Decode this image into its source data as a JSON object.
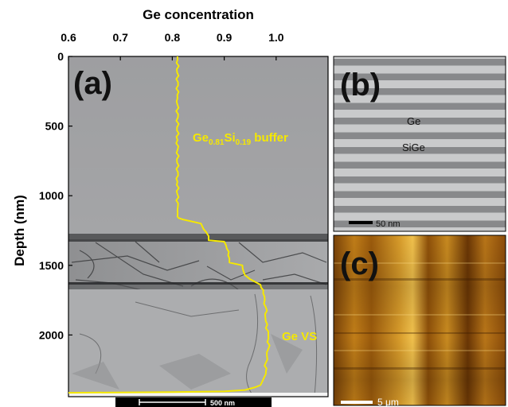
{
  "figure": {
    "top_axis_title": "Ge concentration",
    "left_axis_title": "Depth (nm)",
    "x_ticks": [
      "0.6",
      "0.7",
      "0.8",
      "0.9",
      "1.0"
    ],
    "y_ticks": [
      "0",
      "500",
      "1000",
      "1500",
      "2000"
    ]
  },
  "panel_a": {
    "letter": "(a)",
    "buffer_label": {
      "base1": "Ge",
      "sub1": "0.81",
      "base2": "Si",
      "sub2": "0.19",
      "rest": " buffer"
    },
    "vs_label": "Ge VS",
    "scalebar_label": "500 nm"
  },
  "panel_b": {
    "letter": "(b)",
    "layer_label_1": "Ge",
    "layer_label_2": "SiGe",
    "scalebar_label": "50 nm"
  },
  "panel_c": {
    "letter": "(c)",
    "scalebar_label": "5 μm"
  },
  "colors": {
    "profile": "#f5e800",
    "afm_dark": "#5a2e05",
    "afm_light": "#f0b840"
  },
  "chart_data": {
    "type": "line",
    "title": "",
    "xlabel": "Ge concentration",
    "ylabel": "Depth (nm)",
    "xlim": [
      0.6,
      1.1
    ],
    "ylim": [
      2420,
      0
    ],
    "x_axis_position": "top",
    "series": [
      {
        "x": [
          0.81,
          0.81,
          0.81,
          0.81,
          0.81,
          0.81,
          0.812,
          0.82,
          0.855,
          0.865,
          0.87,
          0.87,
          0.9,
          0.905,
          0.91,
          0.91,
          0.935,
          0.94,
          0.95,
          0.97,
          0.975,
          0.98,
          0.98,
          0.985,
          0.985,
          0.98,
          0.98,
          0.975,
          0.97,
          0.96,
          0.95,
          0.94,
          0.92,
          0.9,
          0.8,
          0.6
        ],
        "y": [
          0,
          300,
          600,
          900,
          1100,
          1150,
          1160,
          1170,
          1200,
          1260,
          1290,
          1320,
          1330,
          1380,
          1450,
          1480,
          1500,
          1570,
          1600,
          1640,
          1700,
          1800,
          1900,
          2000,
          2100,
          2200,
          2280,
          2320,
          2360,
          2375,
          2385,
          2395,
          2400,
          2405,
          2410,
          2415
        ]
      }
    ]
  }
}
